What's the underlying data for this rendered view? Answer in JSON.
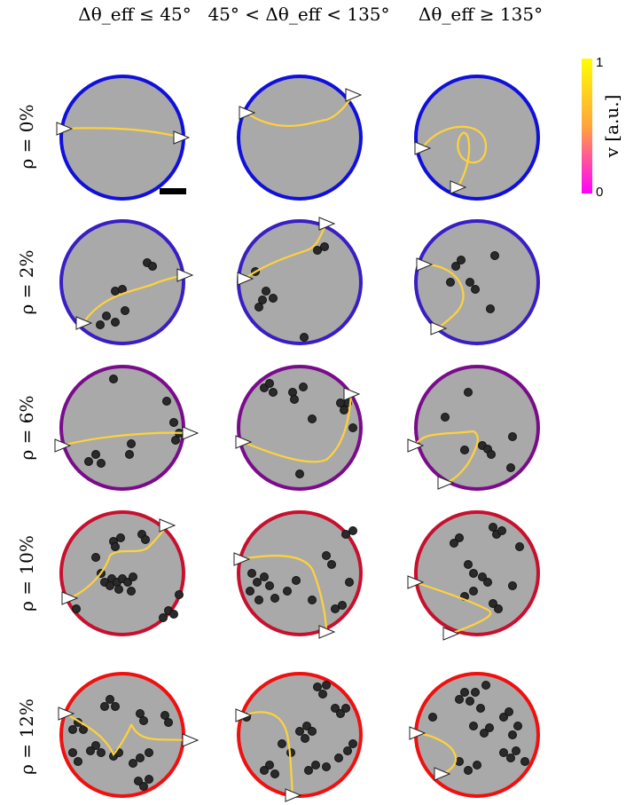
{
  "column_headers": [
    "Δθ_eff ≤ 45°",
    "45° < Δθ_eff < 135°",
    "Δθ_eff ≥ 135°"
  ],
  "row_labels": [
    "ρ = 0%",
    "ρ = 2%",
    "ρ = 6%",
    "ρ = 10%",
    "ρ = 12%"
  ],
  "row_colors": [
    "#1010dd",
    "#3a1ec4",
    "#7a0c8c",
    "#c8102e",
    "#f01010"
  ],
  "colorbar": {
    "label": "v [a.u.]",
    "max_label": "1",
    "min_label": "0",
    "colors": [
      "#ffff00",
      "#ffa53c",
      "#ff00ff"
    ]
  },
  "panel_fill": "#a9a9a9",
  "obstacle_color": "#2a2a2a"
}
